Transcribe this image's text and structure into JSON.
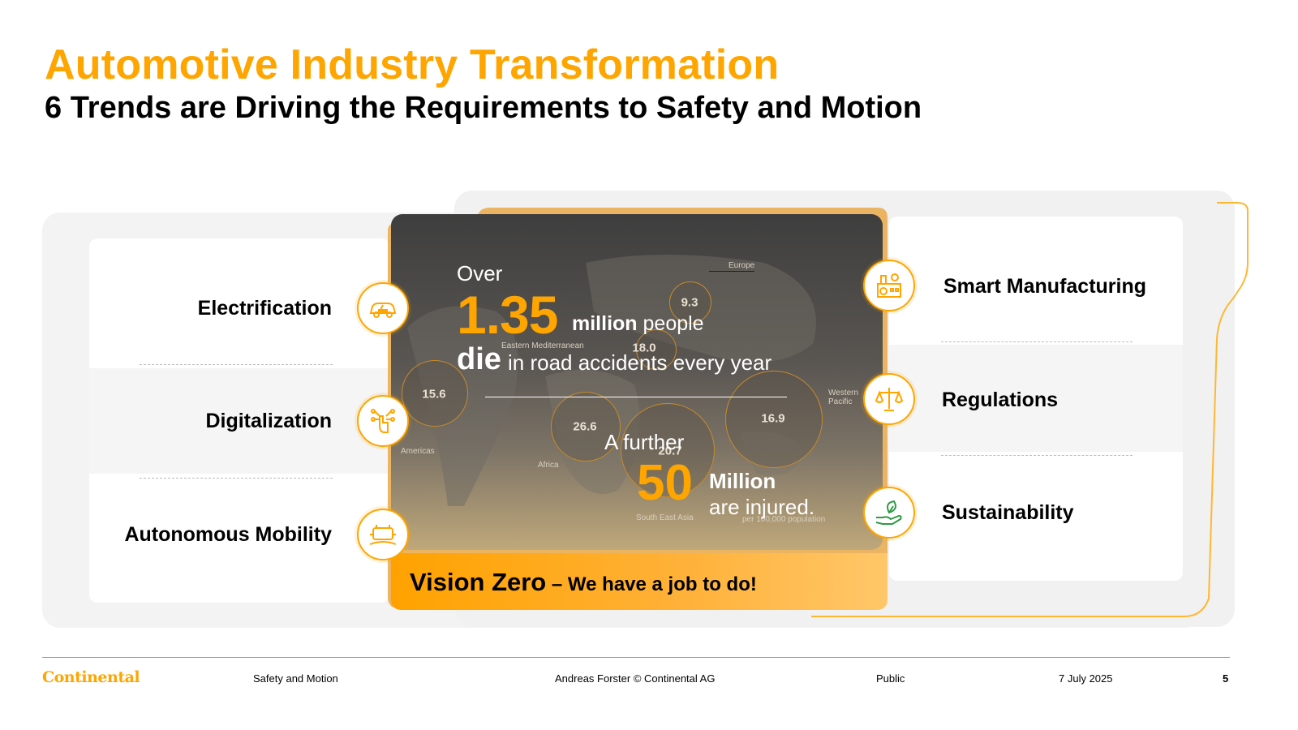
{
  "header": {
    "title": "Automotive Industry Transformation",
    "subtitle": "6 Trends are Driving the Requirements to Safety and Motion"
  },
  "trends_left": [
    {
      "label": "Electrification",
      "icon": "electric-car-icon"
    },
    {
      "label": "Digitalization",
      "icon": "digital-hand-icon"
    },
    {
      "label": "Autonomous Mobility",
      "icon": "autonomous-car-icon"
    }
  ],
  "trends_right": [
    {
      "label": "Smart Manufacturing",
      "icon": "factory-icon"
    },
    {
      "label": "Regulations",
      "icon": "scales-icon"
    },
    {
      "label": "Sustainability",
      "icon": "plant-hand-icon"
    }
  ],
  "center": {
    "over": "Over",
    "deaths_value": "1.35",
    "deaths_million": "million",
    "deaths_people": "people",
    "die": "die",
    "road_text": "in road accidents every year",
    "further": "A further",
    "injured_value": "50",
    "injured_million": "Million",
    "injured_text": "are injured.",
    "per_population": "per 100,000 population",
    "regions": [
      {
        "name": "Europe",
        "value": "9.3"
      },
      {
        "name": "Eastern Mediterranean",
        "value": "18.0"
      },
      {
        "name": "Americas",
        "value": "15.6"
      },
      {
        "name": "Africa",
        "value": "26.6"
      },
      {
        "name": "South East Asia",
        "value": "20.7"
      },
      {
        "name": "Western Pacific",
        "value": "16.9"
      }
    ],
    "vision_main": "Vision Zero",
    "vision_rest": " – We have a job to do!"
  },
  "footer": {
    "logo": "Continental",
    "topic": "Safety and Motion",
    "author": "Andreas Forster © Continental AG",
    "classification": "Public",
    "date": "7 July 2025",
    "page": "5"
  },
  "colors": {
    "accent": "#ffa500",
    "panel": "#f3f3f3"
  }
}
